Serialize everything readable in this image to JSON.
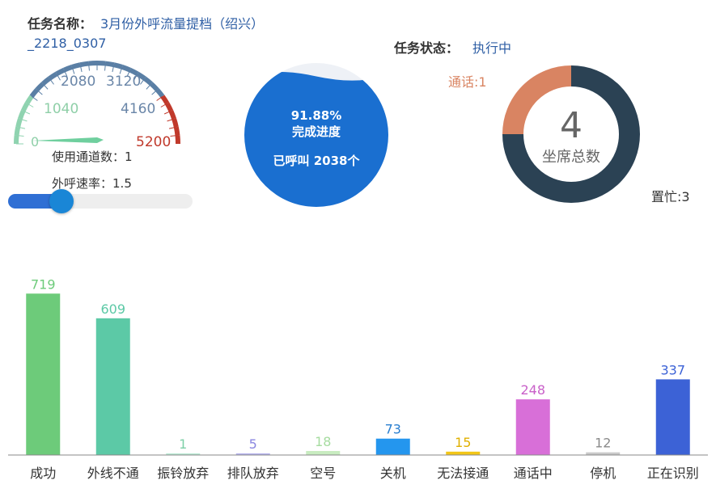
{
  "task": {
    "name_label": "任务名称：",
    "name_value": "3月份外呼流量提档（绍兴）",
    "name_value_line2": "_2218_0307",
    "status_label": "任务状态：",
    "status_value": "执行中"
  },
  "gauge": {
    "ticks": [
      "0",
      "1040",
      "2080",
      "3120",
      "4160",
      "5200"
    ],
    "min": 0,
    "max": 5200,
    "value": 1040,
    "channels_label": "使用通道数：",
    "channels_value": "1",
    "rate_label": "外呼速率：",
    "rate_value": "1.5",
    "slider_fraction": 0.29
  },
  "progress": {
    "percent_text": "91.88%",
    "percent": 91.88,
    "caption": "完成进度",
    "called_text": "已呼叫 2038个",
    "color": "#1a6fd0"
  },
  "seats": {
    "total": "4",
    "total_label": "坐席总数",
    "talking_label": "通话:1",
    "busy_label": "置忙:3",
    "talking": 1,
    "busy": 3,
    "colors": {
      "talking": "#d98462",
      "busy": "#2b4254"
    }
  },
  "chart_data": {
    "type": "bar",
    "categories": [
      "成功",
      "外线不通",
      "振铃放弃",
      "排队放弃",
      "空号",
      "关机",
      "无法接通",
      "通话中",
      "停机",
      "正在识别"
    ],
    "values": [
      719,
      609,
      1,
      5,
      18,
      73,
      15,
      248,
      12,
      337
    ],
    "labels": [
      "719",
      "609",
      "1",
      "5",
      "18",
      "73",
      "15",
      "248",
      "12",
      "337"
    ],
    "colors": [
      "#6dcb7a",
      "#5cc9a6",
      "#b9ead4",
      "#b5b2ee",
      "#c8ecc0",
      "#2496ee",
      "#f2c617",
      "#d86fd8",
      "#c9c9c9",
      "#3c62d6"
    ],
    "label_colors": [
      "#6dcb7a",
      "#5cc9a6",
      "#7fd0a8",
      "#8a86e0",
      "#a6dca0",
      "#2a7fd0",
      "#e0b000",
      "#c960c9",
      "#8a8a8a",
      "#3c62d6"
    ],
    "ylim": [
      0,
      720
    ]
  }
}
